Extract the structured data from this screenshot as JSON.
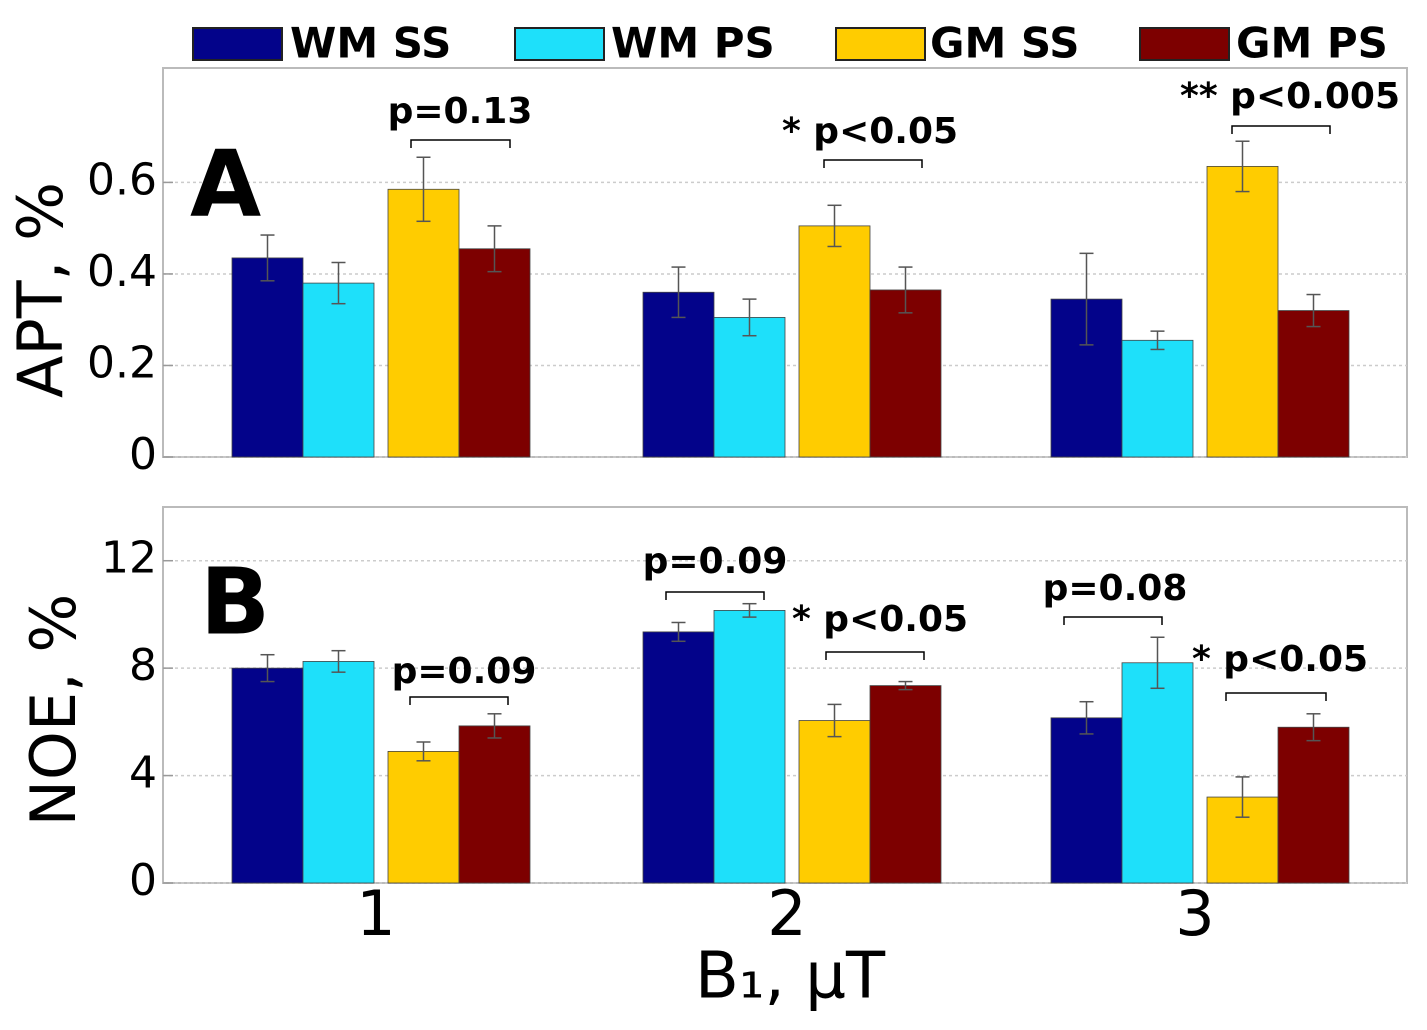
{
  "chart_data": [
    {
      "type": "bar",
      "panel_label": "A",
      "y_label": "APT, %",
      "ylim": [
        0,
        0.85
      ],
      "yticks": [
        0,
        0.2,
        0.4,
        0.6
      ],
      "grid": true,
      "series": [
        {
          "name": "WM SS",
          "color": "#03038a",
          "values": [
            0.435,
            0.36,
            0.345
          ],
          "errors": [
            0.05,
            0.055,
            0.1
          ]
        },
        {
          "name": "WM PS",
          "color": "#1ee0fa",
          "values": [
            0.38,
            0.305,
            0.255
          ],
          "errors": [
            0.045,
            0.04,
            0.02
          ]
        },
        {
          "name": "GM SS",
          "color": "#ffcc00",
          "values": [
            0.585,
            0.505,
            0.635
          ],
          "errors": [
            0.07,
            0.045,
            0.055
          ]
        },
        {
          "name": "GM PS",
          "color": "#7d0000",
          "values": [
            0.455,
            0.365,
            0.32
          ],
          "errors": [
            0.05,
            0.05,
            0.035
          ]
        }
      ],
      "annotations": [
        "p=0.13",
        "* p<0.05",
        "** p<0.005"
      ]
    },
    {
      "type": "bar",
      "panel_label": "B",
      "y_label": "NOE, %",
      "x_label": "B₁, µT",
      "categories": [
        "1",
        "2",
        "3"
      ],
      "ylim": [
        0,
        14
      ],
      "yticks": [
        0,
        4,
        8,
        12
      ],
      "grid": true,
      "series": [
        {
          "color": "#03038a",
          "values": [
            8.0,
            9.35,
            6.15
          ],
          "errors": [
            0.5,
            0.35,
            0.6
          ]
        },
        {
          "color": "#1ee0fa",
          "values": [
            8.25,
            10.15,
            8.2
          ],
          "errors": [
            0.4,
            0.25,
            0.95
          ]
        },
        {
          "color": "#ffcc00",
          "values": [
            4.9,
            6.05,
            3.2
          ],
          "errors": [
            0.35,
            0.6,
            0.75
          ]
        },
        {
          "color": "#7d0000",
          "values": [
            5.85,
            7.35,
            5.8
          ],
          "errors": [
            0.45,
            0.15,
            0.5
          ]
        }
      ],
      "annotations": [
        "p=0.09",
        "p=0.09",
        "* p<0.05",
        "p=0.08",
        "* p<0.05"
      ]
    }
  ]
}
